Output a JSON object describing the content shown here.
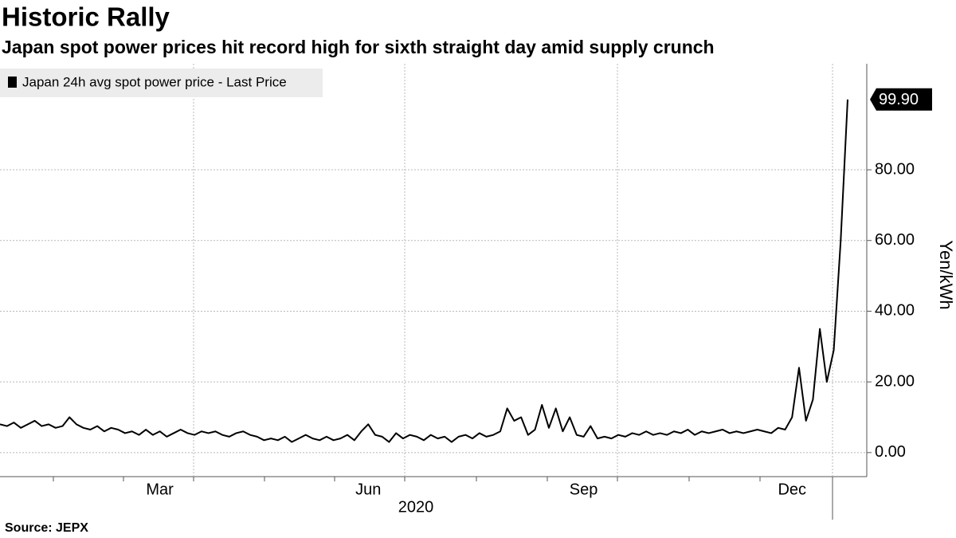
{
  "chart_data": {
    "type": "line",
    "title": "Historic Rally",
    "subtitle": "Japan spot power prices hit record high for sixth straight day amid supply crunch",
    "source": "Source: JEPX",
    "xlabel": "2020",
    "ylabel": "Yen/kWh",
    "ylim": [
      -6.8,
      110
    ],
    "yticks": [
      {
        "value": 0,
        "label": "0.00"
      },
      {
        "value": 20,
        "label": "20.00"
      },
      {
        "value": 40,
        "label": "40.00"
      },
      {
        "value": 60,
        "label": "60.00"
      },
      {
        "value": 80,
        "label": "80.00"
      }
    ],
    "grid": true,
    "legend": "top-left",
    "categories": [
      null,
      null,
      null,
      null,
      null,
      null,
      null,
      null,
      null,
      null,
      null,
      null,
      null,
      null,
      null,
      null,
      null,
      null,
      null,
      null,
      null,
      null,
      null,
      "Mar",
      null,
      null,
      null,
      null,
      null,
      null,
      null,
      null,
      null,
      null,
      null,
      null,
      null,
      null,
      null,
      null,
      null,
      null,
      null,
      null,
      null,
      null,
      null,
      null,
      null,
      null,
      null,
      null,
      null,
      "Jun",
      null,
      null,
      null,
      null,
      null,
      null,
      null,
      null,
      null,
      null,
      null,
      null,
      null,
      null,
      null,
      null,
      null,
      null,
      null,
      null,
      null,
      null,
      null,
      null,
      null,
      null,
      null,
      null,
      null,
      null,
      "Sep",
      null,
      null,
      null,
      null,
      null,
      null,
      null,
      null,
      null,
      null,
      null,
      null,
      null,
      null,
      null,
      null,
      null,
      null,
      null,
      null,
      null,
      null,
      null,
      null,
      null,
      null,
      null,
      null,
      null,
      "Dec",
      null,
      null,
      null,
      null,
      null,
      null,
      null,
      null
    ],
    "series": [
      {
        "name": "Japan 24h avg spot power price - Last Price",
        "color": "#000000",
        "values": [
          8,
          7.5,
          8.5,
          7,
          8,
          9,
          7.5,
          8,
          7,
          7.5,
          10,
          8,
          7,
          6.5,
          7.5,
          6,
          7,
          6.5,
          5.5,
          6,
          5,
          6.5,
          5,
          6,
          4.5,
          5.5,
          6.5,
          5.5,
          5,
          6,
          5.5,
          6,
          5,
          4.5,
          5.5,
          6,
          5,
          4.5,
          3.5,
          4,
          3.5,
          4.5,
          3,
          4,
          5,
          4,
          3.5,
          4.5,
          3.5,
          4,
          5,
          3.5,
          6,
          8,
          5,
          4.5,
          3,
          5.5,
          4,
          5,
          4.5,
          3.5,
          5,
          4,
          4.5,
          3,
          4.5,
          5,
          4,
          5.5,
          4.5,
          5,
          6,
          12.5,
          9,
          10,
          5,
          6.5,
          13.5,
          7,
          12.5,
          6,
          10,
          5,
          4.5,
          7.5,
          4,
          4.5,
          4,
          5,
          4.5,
          5.5,
          5,
          6,
          5,
          5.5,
          5,
          6,
          5.5,
          6.5,
          5,
          6,
          5.5,
          6,
          6.5,
          5.5,
          6,
          5.5,
          6,
          6.5,
          6,
          5.5,
          7,
          6.5,
          10,
          24,
          9,
          15,
          35,
          20,
          29,
          60,
          99.9
        ],
        "value_labels": [
          null,
          null,
          null,
          null,
          null,
          null,
          null,
          null,
          null,
          null,
          null,
          null,
          null,
          null,
          null,
          null,
          null,
          null,
          null,
          null,
          null,
          null,
          null,
          null,
          null,
          null,
          null,
          null,
          null,
          null,
          null,
          null,
          null,
          null,
          null,
          null,
          null,
          null,
          null,
          null,
          null,
          null,
          null,
          null,
          null,
          null,
          null,
          null,
          null,
          null,
          null,
          null,
          null,
          null,
          null,
          null,
          null,
          null,
          null,
          null,
          null,
          null,
          null,
          null,
          null,
          null,
          null,
          null,
          null,
          null,
          null,
          null,
          null,
          null,
          null,
          null,
          null,
          null,
          null,
          null,
          null,
          null,
          null,
          null,
          null,
          null,
          null,
          null,
          null,
          null,
          null,
          null,
          null,
          null,
          null,
          null,
          null,
          null,
          null,
          null,
          null,
          null,
          null,
          null,
          null,
          null,
          null,
          null,
          null,
          null,
          null,
          null,
          null,
          null,
          null,
          null,
          null,
          null,
          null,
          null,
          null,
          null,
          "99.90"
        ]
      }
    ]
  }
}
